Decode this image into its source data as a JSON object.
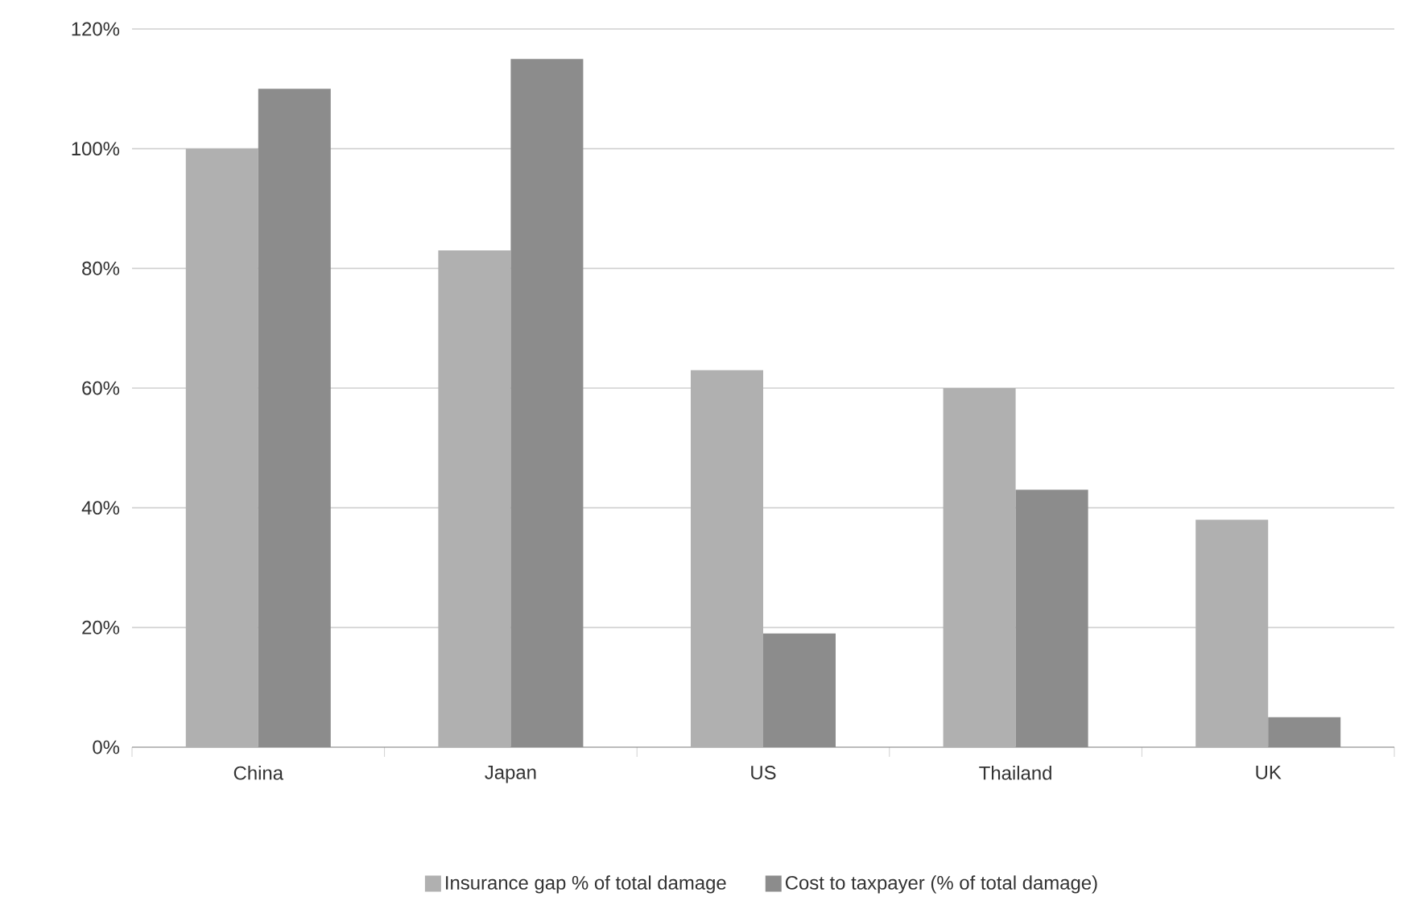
{
  "chart_data": {
    "type": "bar",
    "categories": [
      "China",
      "Japan",
      "US",
      "Thailand",
      "UK"
    ],
    "series": [
      {
        "name": "Insurance gap % of total damage",
        "color": "#b0b0b0",
        "values": [
          100,
          83,
          63,
          60,
          38
        ]
      },
      {
        "name": "Cost to taxpayer (% of total damage)",
        "color": "#8c8c8c",
        "values": [
          110,
          115,
          19,
          43,
          5
        ]
      }
    ],
    "ylim": [
      0,
      120
    ],
    "yticks": [
      {
        "value": 0,
        "label": "0%"
      },
      {
        "value": 20,
        "label": "20%"
      },
      {
        "value": 40,
        "label": "40%"
      },
      {
        "value": 60,
        "label": "60%"
      },
      {
        "value": 80,
        "label": "80%"
      },
      {
        "value": 100,
        "label": "100%"
      },
      {
        "value": 120,
        "label": "120%"
      }
    ],
    "grid": "y",
    "legend": "bottom"
  }
}
